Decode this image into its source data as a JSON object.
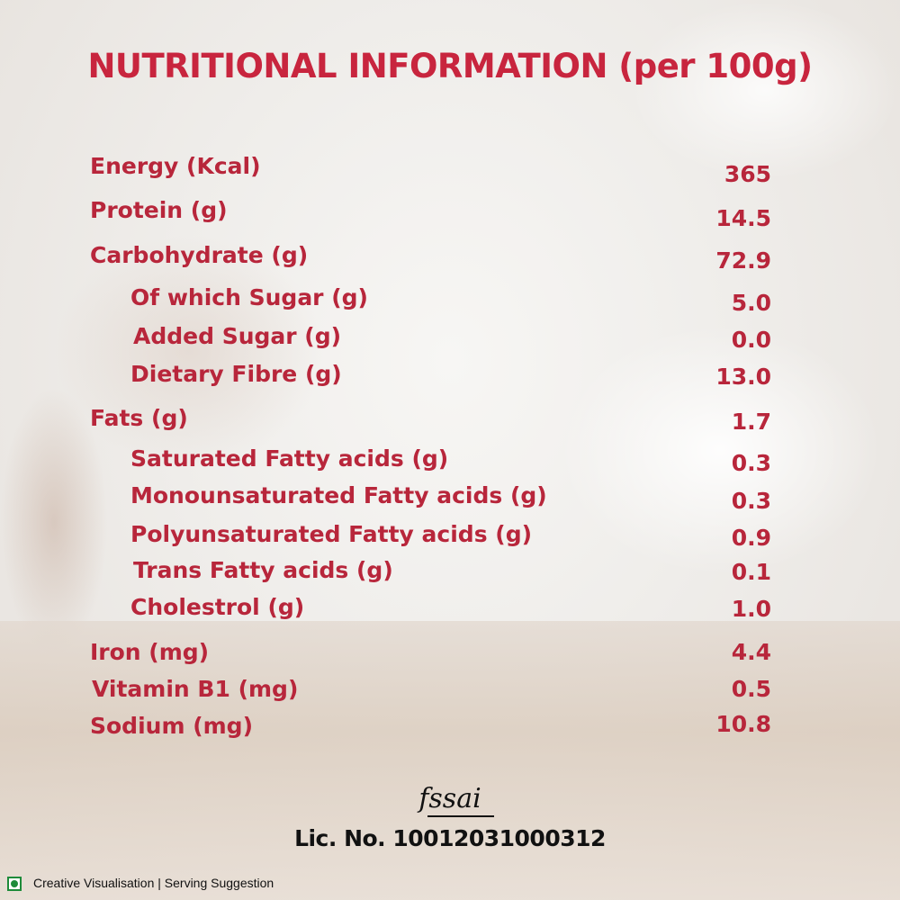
{
  "title": "NUTRITIONAL INFORMATION (per 100g)",
  "rows": [
    {
      "label": "Energy (Kcal)",
      "value": "365"
    },
    {
      "label": "Protein (g)",
      "value": "14.5"
    },
    {
      "label": "Carbohydrate  (g)",
      "value": "72.9"
    },
    {
      "label": "Of which Sugar  (g)",
      "value": "5.0"
    },
    {
      "label": "Added Sugar  (g)",
      "value": "0.0"
    },
    {
      "label": "Dietary Fibre  (g)",
      "value": "13.0"
    },
    {
      "label": "Fats  (g)",
      "value": "1.7"
    },
    {
      "label": "Saturated Fatty acids  (g)",
      "value": "0.3"
    },
    {
      "label": "Monounsaturated Fatty acids  (g)",
      "value": "0.3"
    },
    {
      "label": "Polyunsaturated Fatty acids  (g)",
      "value": "0.9"
    },
    {
      "label": "Trans Fatty acids  (g)",
      "value": "0.1"
    },
    {
      "label": "Cholestrol  (g)",
      "value": "1.0"
    },
    {
      "label": "Iron  (mg)",
      "value": "4.4"
    },
    {
      "label": "Vitamin B1  (mg)",
      "value": "0.5"
    },
    {
      "label": "Sodium (mg)",
      "value": "10.8"
    }
  ],
  "fssai": {
    "logo_text": "fssai",
    "license": "Lic. No. 10012031000312"
  },
  "footer": {
    "veg_mark_color": "#1e8b3a",
    "disclaimer": "Creative Visualisation | Serving Suggestion"
  },
  "colors": {
    "accent": "#c8253e",
    "text_dark": "#111111"
  }
}
